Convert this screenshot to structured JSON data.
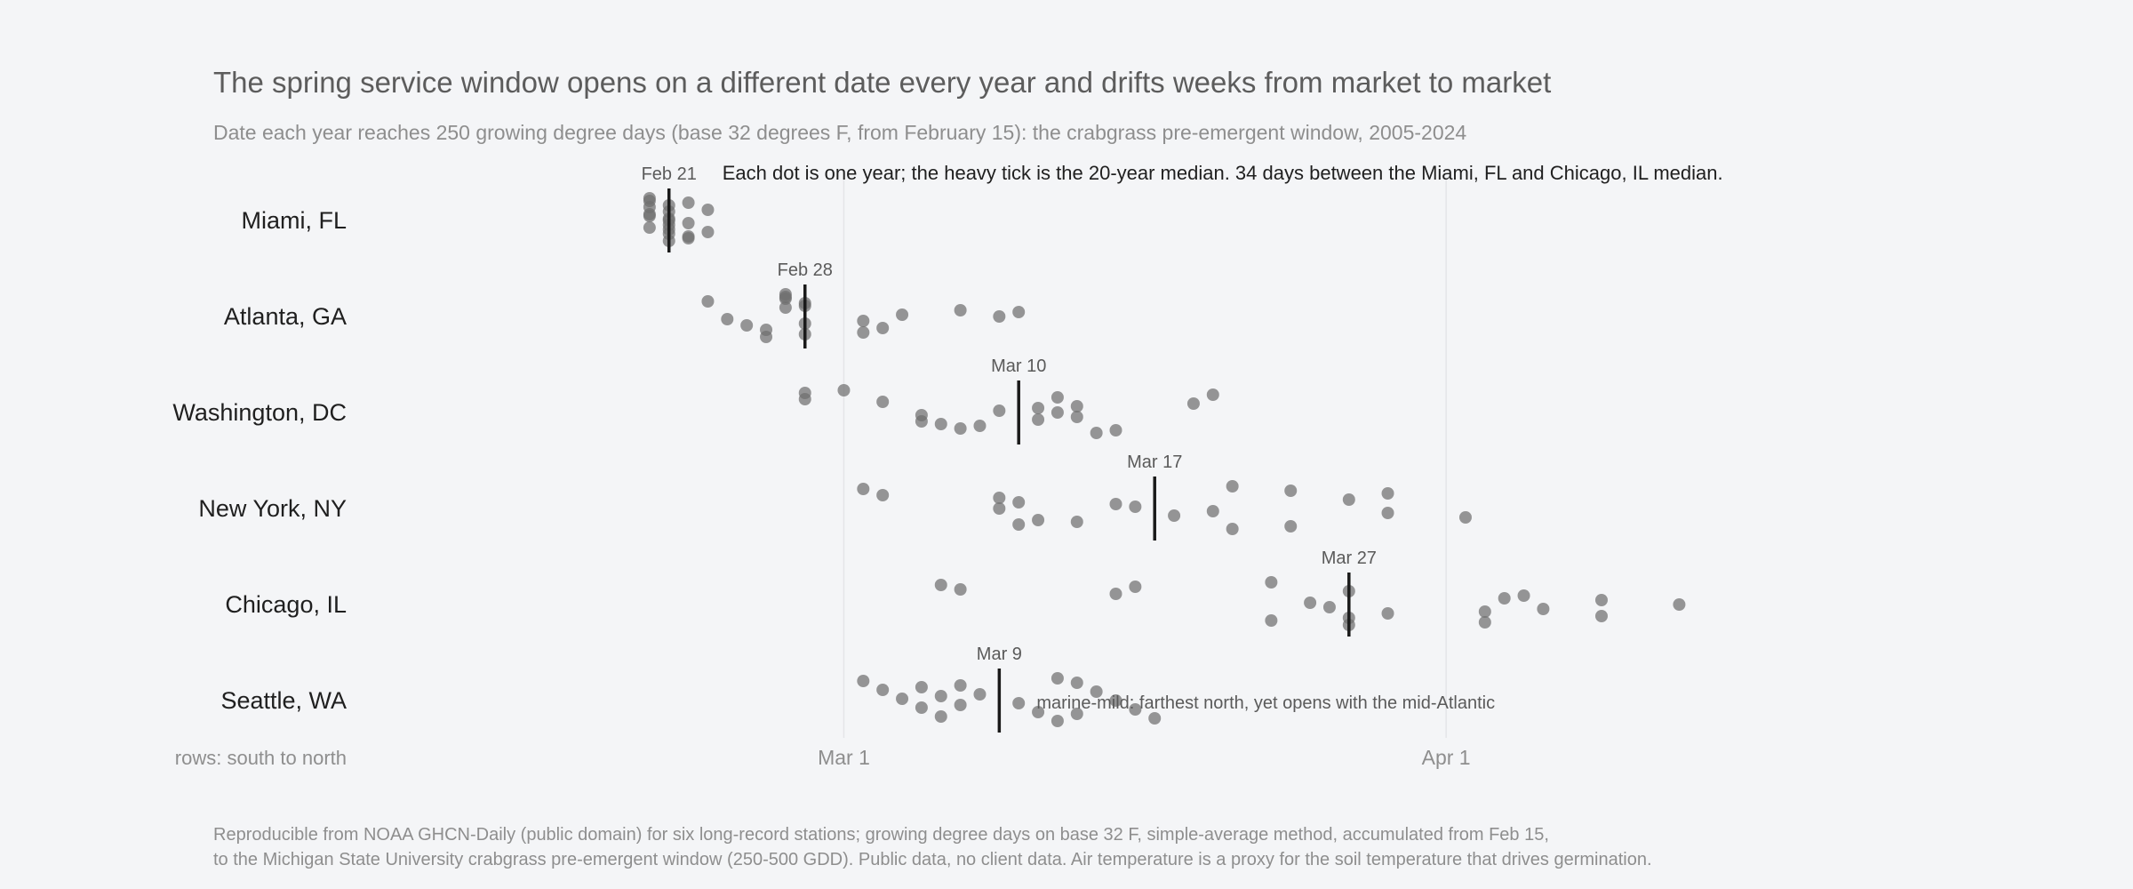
{
  "title": "The spring service window opens on a different date every year and drifts weeks from market to market",
  "subtitle": "Date each year reaches 250 growing degree days (base 32 degrees F, from February 15): the crabgrass pre-emergent window, 2005-2024",
  "chart_data": {
    "type": "scatter",
    "year_range": "2005-2024",
    "x_axis": {
      "type": "date",
      "range": [
        "2024-02-12",
        "2024-04-16"
      ],
      "ticks": [
        {
          "date": "2024-03-01",
          "label": "Mar 1"
        },
        {
          "date": "2024-04-01",
          "label": "Apr 1"
        }
      ],
      "grid": "vertical, at ticks"
    },
    "y_axis": {
      "type": "category",
      "corner_label": "rows: south to north"
    },
    "annotation": "Each dot is one year; the heavy tick is the 20-year median. 34 days between the Miami, FL and Chicago, IL median.",
    "series": [
      {
        "name": "Miami, FL",
        "median": "2024-02-21",
        "median_label": "Feb 21",
        "values": [
          "2024-02-20",
          "2024-02-23",
          "2024-02-21",
          "2024-02-20",
          "2024-02-22",
          "2024-02-21",
          "2024-02-20",
          "2024-02-22",
          "2024-02-23",
          "2024-02-21",
          "2024-02-22",
          "2024-02-21",
          "2024-02-21",
          "2024-02-21",
          "2024-02-22",
          "2024-02-20",
          "2024-02-20",
          "2024-02-21",
          "2024-02-21",
          "2024-02-20"
        ]
      },
      {
        "name": "Atlanta, GA",
        "median": "2024-02-28",
        "median_label": "Feb 28",
        "values": [
          "2024-02-27",
          "2024-02-28",
          "2024-03-04",
          "2024-02-28",
          "2024-03-02",
          "2024-02-23",
          "2024-03-07",
          "2024-02-24",
          "2024-03-03",
          "2024-02-26",
          "2024-02-27",
          "2024-02-27",
          "2024-03-09",
          "2024-02-25",
          "2024-02-28",
          "2024-02-28",
          "2024-03-10",
          "2024-03-02",
          "2024-02-26",
          "2024-02-27"
        ]
      },
      {
        "name": "Washington, DC",
        "median": "2024-03-10",
        "median_label": "Mar 10",
        "values": [
          "2024-02-28",
          "2024-03-03",
          "2024-03-09",
          "2024-03-11",
          "2024-03-07",
          "2024-03-12",
          "2024-03-13",
          "2024-03-05",
          "2024-03-06",
          "2024-03-14",
          "2024-03-20",
          "2024-03-19",
          "2024-03-12",
          "2024-03-05",
          "2024-03-15",
          "2024-02-28",
          "2024-03-11",
          "2024-03-13",
          "2024-03-08",
          "2024-03-01"
        ]
      },
      {
        "name": "New York, NY",
        "median": "2024-03-17",
        "median_label": "Mar 17",
        "values": [
          "2024-03-02",
          "2024-03-09",
          "2024-03-16",
          "2024-03-18",
          "2024-03-10",
          "2024-03-29",
          "2024-03-10",
          "2024-03-20",
          "2024-03-11",
          "2024-03-21",
          "2024-03-24",
          "2024-03-27",
          "2024-03-09",
          "2024-04-02",
          "2024-03-24",
          "2024-03-03",
          "2024-03-15",
          "2024-03-29",
          "2024-03-13",
          "2024-03-21"
        ]
      },
      {
        "name": "Chicago, IL",
        "median": "2024-03-27",
        "median_label": "Mar 27",
        "values": [
          "2024-03-06",
          "2024-03-15",
          "2024-03-25",
          "2024-04-03",
          "2024-03-23",
          "2024-03-07",
          "2024-04-04",
          "2024-03-26",
          "2024-04-09",
          "2024-03-27",
          "2024-03-16",
          "2024-04-05",
          "2024-04-13",
          "2024-03-29",
          "2024-04-03",
          "2024-03-27",
          "2024-04-09",
          "2024-04-06",
          "2024-03-27",
          "2024-03-23"
        ]
      },
      {
        "name": "Seattle, WA",
        "median": "2024-03-09",
        "median_label": "Mar 9",
        "values": [
          "2024-03-02",
          "2024-03-03",
          "2024-03-04",
          "2024-03-05",
          "2024-03-06",
          "2024-03-07",
          "2024-03-08",
          "2024-03-10",
          "2024-03-11",
          "2024-03-12",
          "2024-03-13",
          "2024-03-14",
          "2024-03-15",
          "2024-03-16",
          "2024-03-17",
          "2024-03-05",
          "2024-03-06",
          "2024-03-07",
          "2024-03-13",
          "2024-03-12"
        ],
        "note": "marine-mild: farthest north, yet opens with the mid-Atlantic"
      }
    ],
    "colors": {
      "dot": "#6f6f6f",
      "median": "#1a1a1a",
      "grid": "#e4e5e8",
      "label": "#1f1f1f",
      "muted": "#8e8e8e"
    }
  },
  "footnote": {
    "line1": "Reproducible from NOAA GHCN-Daily (public domain) for six long-record stations; growing degree days on base 32 F, simple-average method, accumulated from Feb 15,",
    "line2": "to the Michigan State University crabgrass pre-emergent window (250-500 GDD). Public data, no client data. Air temperature is a proxy for the soil temperature that drives germination."
  }
}
